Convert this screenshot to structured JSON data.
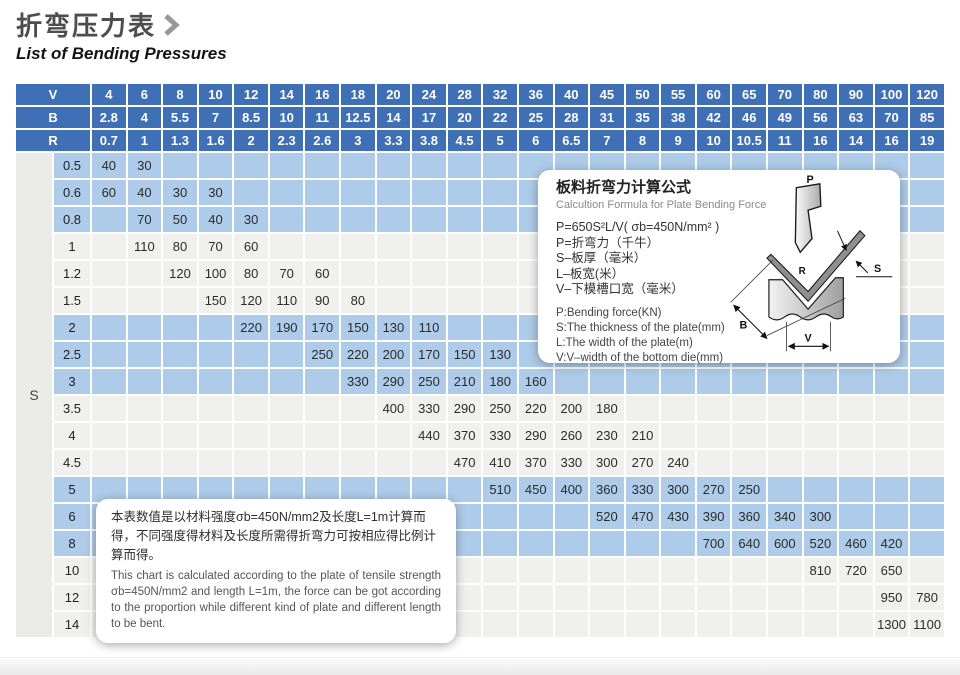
{
  "page": {
    "title_zh": "折弯压力表",
    "subtitle_en": "List of Bending Pressures"
  },
  "colors": {
    "header_blue": "#3f6fb5",
    "row_blue": "#aecbe9",
    "row_gray": "#f0f0ef",
    "group_gray": "#ebebea",
    "title_gray": "#4d4d4d"
  },
  "table": {
    "group_label": "S",
    "header_rows": [
      {
        "label": "V",
        "values": [
          "4",
          "6",
          "8",
          "10",
          "12",
          "14",
          "16",
          "18",
          "20",
          "24",
          "28",
          "32",
          "36",
          "40",
          "45",
          "50",
          "55",
          "60",
          "65",
          "70",
          "80",
          "90",
          "100",
          "120"
        ]
      },
      {
        "label": "B",
        "values": [
          "2.8",
          "4",
          "5.5",
          "7",
          "8.5",
          "10",
          "11",
          "12.5",
          "14",
          "17",
          "20",
          "22",
          "25",
          "28",
          "31",
          "35",
          "38",
          "42",
          "46",
          "49",
          "56",
          "63",
          "70",
          "85"
        ]
      },
      {
        "label": "R",
        "values": [
          "0.7",
          "1",
          "1.3",
          "1.6",
          "2",
          "2.3",
          "2.6",
          "3",
          "3.3",
          "3.8",
          "4.5",
          "5",
          "6",
          "6.5",
          "7",
          "8",
          "9",
          "10",
          "10.5",
          "11",
          "16",
          "14",
          "16",
          "19"
        ]
      }
    ],
    "rows": [
      {
        "s": "0.5",
        "values": [
          "40",
          "30",
          "",
          "",
          "",
          "",
          "",
          "",
          "",
          "",
          "",
          "",
          "",
          "",
          "",
          "",
          "",
          "",
          "",
          "",
          "",
          "",
          "",
          ""
        ]
      },
      {
        "s": "0.6",
        "values": [
          "60",
          "40",
          "30",
          "30",
          "",
          "",
          "",
          "",
          "",
          "",
          "",
          "",
          "",
          "",
          "",
          "",
          "",
          "",
          "",
          "",
          "",
          "",
          "",
          ""
        ]
      },
      {
        "s": "0.8",
        "values": [
          "",
          "70",
          "50",
          "40",
          "30",
          "",
          "",
          "",
          "",
          "",
          "",
          "",
          "",
          "",
          "",
          "",
          "",
          "",
          "",
          "",
          "",
          "",
          "",
          ""
        ]
      },
      {
        "s": "1",
        "values": [
          "",
          "110",
          "80",
          "70",
          "60",
          "",
          "",
          "",
          "",
          "",
          "",
          "",
          "",
          "",
          "",
          "",
          "",
          "",
          "",
          "",
          "",
          "",
          "",
          ""
        ]
      },
      {
        "s": "1.2",
        "values": [
          "",
          "",
          "120",
          "100",
          "80",
          "70",
          "60",
          "",
          "",
          "",
          "",
          "",
          "",
          "",
          "",
          "",
          "",
          "",
          "",
          "",
          "",
          "",
          "",
          ""
        ]
      },
      {
        "s": "1.5",
        "values": [
          "",
          "",
          "",
          "150",
          "120",
          "110",
          "90",
          "80",
          "",
          "",
          "",
          "",
          "",
          "",
          "",
          "",
          "",
          "",
          "",
          "",
          "",
          "",
          "",
          ""
        ]
      },
      {
        "s": "2",
        "values": [
          "",
          "",
          "",
          "",
          "220",
          "190",
          "170",
          "150",
          "130",
          "110",
          "",
          "",
          "",
          "",
          "",
          "",
          "",
          "",
          "",
          "",
          "",
          "",
          "",
          ""
        ]
      },
      {
        "s": "2.5",
        "values": [
          "",
          "",
          "",
          "",
          "",
          "",
          "250",
          "220",
          "200",
          "170",
          "150",
          "130",
          "",
          "",
          "",
          "",
          "",
          "",
          "",
          "",
          "",
          "",
          "",
          ""
        ]
      },
      {
        "s": "3",
        "values": [
          "",
          "",
          "",
          "",
          "",
          "",
          "",
          "330",
          "290",
          "250",
          "210",
          "180",
          "160",
          "",
          "",
          "",
          "",
          "",
          "",
          "",
          "",
          "",
          "",
          ""
        ]
      },
      {
        "s": "3.5",
        "values": [
          "",
          "",
          "",
          "",
          "",
          "",
          "",
          "",
          "400",
          "330",
          "290",
          "250",
          "220",
          "200",
          "180",
          "",
          "",
          "",
          "",
          "",
          "",
          "",
          "",
          ""
        ]
      },
      {
        "s": "4",
        "values": [
          "",
          "",
          "",
          "",
          "",
          "",
          "",
          "",
          "",
          "440",
          "370",
          "330",
          "290",
          "260",
          "230",
          "210",
          "",
          "",
          "",
          "",
          "",
          "",
          "",
          ""
        ]
      },
      {
        "s": "4.5",
        "values": [
          "",
          "",
          "",
          "",
          "",
          "",
          "",
          "",
          "",
          "",
          "470",
          "410",
          "370",
          "330",
          "300",
          "270",
          "240",
          "",
          "",
          "",
          "",
          "",
          "",
          ""
        ]
      },
      {
        "s": "5",
        "values": [
          "",
          "",
          "",
          "",
          "",
          "",
          "",
          "",
          "",
          "",
          "",
          "510",
          "450",
          "400",
          "360",
          "330",
          "300",
          "270",
          "250",
          "",
          "",
          "",
          "",
          ""
        ]
      },
      {
        "s": "6",
        "values": [
          "",
          "",
          "",
          "",
          "",
          "",
          "",
          "",
          "",
          "",
          "",
          "",
          "",
          "",
          "520",
          "470",
          "430",
          "390",
          "360",
          "340",
          "300",
          "",
          "",
          ""
        ]
      },
      {
        "s": "8",
        "values": [
          "",
          "",
          "",
          "",
          "",
          "",
          "",
          "",
          "",
          "",
          "",
          "",
          "",
          "",
          "",
          "",
          "",
          "700",
          "640",
          "600",
          "520",
          "460",
          "420",
          ""
        ]
      },
      {
        "s": "10",
        "values": [
          "",
          "",
          "",
          "",
          "",
          "",
          "",
          "",
          "",
          "",
          "",
          "",
          "",
          "",
          "",
          "",
          "",
          "",
          "",
          "",
          "810",
          "720",
          "650",
          ""
        ]
      },
      {
        "s": "12",
        "values": [
          "",
          "",
          "",
          "",
          "",
          "",
          "",
          "",
          "",
          "",
          "",
          "",
          "",
          "",
          "",
          "",
          "",
          "",
          "",
          "",
          "",
          "",
          "950",
          "780"
        ]
      },
      {
        "s": "14",
        "values": [
          "",
          "",
          "",
          "",
          "",
          "",
          "",
          "",
          "",
          "",
          "",
          "",
          "",
          "",
          "",
          "",
          "",
          "",
          "",
          "",
          "",
          "",
          "1300",
          "1100"
        ]
      }
    ]
  },
  "formula_box": {
    "title_zh": "板料折弯力计算公式",
    "title_en": "Calcultion Formula for Plate Bending Force",
    "lines_zh": [
      "P=650S²L/V( σb=450N/mm² )",
      "P=折弯力（千牛）",
      "S–板厚（毫米）",
      "L–板宽(米）",
      "V–下模槽口宽（毫米）"
    ],
    "lines_en": [
      "P:Bending force(KN)",
      "S:The thickness of the plate(mm)",
      "L:The width of the plate(m)",
      "V:V–width of the bottom die(mm)"
    ]
  },
  "note_box": {
    "text_zh": "本表数值是以材料强度σb=450N/mm2及长度L=1m计算而得，不同强度得材料及长度所需得折弯力可按相应得比例计算而得。",
    "text_en": "This chart is calculated according to the plate of tensile strength σb=450N/mm2 and length L=1m, the force can be got according to the proportion while different kind of plate and different length to be bent."
  },
  "diagram": {
    "p_label": "P",
    "r_label": "R",
    "b_label": "B",
    "v_label": "V",
    "s_label": "S"
  }
}
